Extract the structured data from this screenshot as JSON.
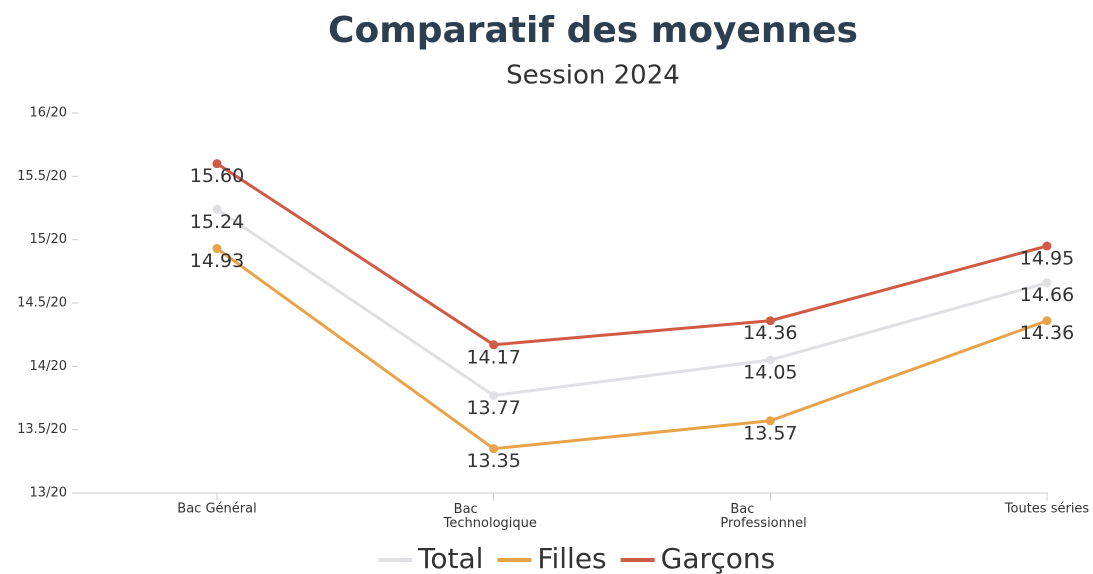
{
  "chart_data": {
    "type": "line",
    "title": "Comparatif des moyennes",
    "subtitle": "Session 2024",
    "categories": [
      "Bac Général",
      "Bac Technologique",
      "Bac Professionnel",
      "Toutes séries"
    ],
    "series": [
      {
        "name": "Total",
        "color": "#e0dfe3",
        "values": [
          15.24,
          13.77,
          14.05,
          14.66
        ],
        "value_labels": [
          "15.24",
          "13.77",
          "14.05",
          "14.66"
        ]
      },
      {
        "name": "Filles",
        "color": "#e8a34a",
        "values": [
          14.93,
          13.35,
          13.57,
          14.36
        ],
        "value_labels": [
          "14.93",
          "13.35",
          "13.57",
          "14.36"
        ]
      },
      {
        "name": "Garçons",
        "color": "#d15a45",
        "values": [
          15.6,
          14.17,
          14.36,
          14.95
        ],
        "value_labels": [
          "15.60",
          "14.17",
          "14.36",
          "14.95"
        ]
      }
    ],
    "ylim": [
      13,
      16
    ],
    "yticks": [
      {
        "value": 13,
        "label": "13/20"
      },
      {
        "value": 13.5,
        "label": "13.5/20"
      },
      {
        "value": 14,
        "label": "14/20"
      },
      {
        "value": 14.5,
        "label": "14.5/20"
      },
      {
        "value": 15,
        "label": "15/20"
      },
      {
        "value": 15.5,
        "label": "15.5/20"
      },
      {
        "value": 16,
        "label": "16/20"
      }
    ]
  }
}
